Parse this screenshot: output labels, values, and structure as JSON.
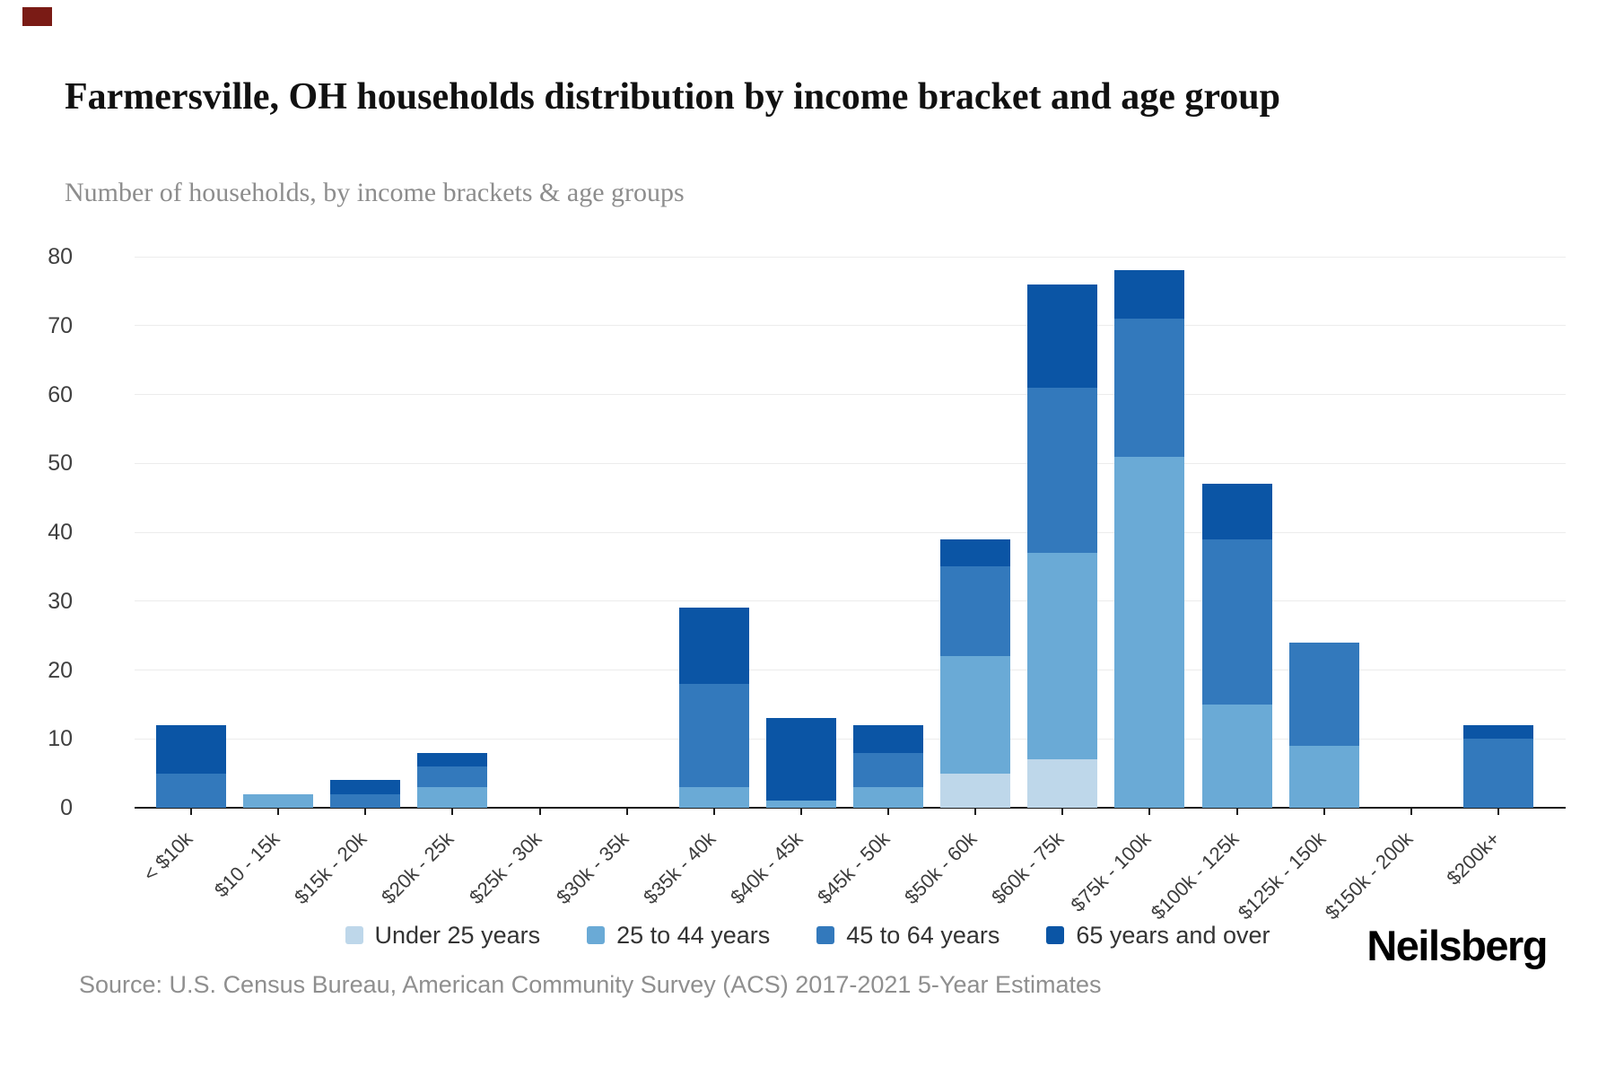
{
  "page": {
    "title": "Farmersville, OH households distribution by income bracket and age group",
    "subtitle": "Number of households, by income brackets & age groups",
    "source": "Source: U.S. Census Bureau, American Community Survey (ACS) 2017-2021 5-Year Estimates",
    "brand": "Neilsberg",
    "accent_mark_color": "#7a1b15"
  },
  "chart_data": {
    "type": "bar",
    "stacked": true,
    "title": "Farmersville, OH households distribution by income bracket and age group",
    "subtitle": "Number of households, by income brackets & age groups",
    "xlabel": "",
    "ylabel": "Number of households",
    "ylim": [
      0,
      80
    ],
    "yticks": [
      0,
      10,
      20,
      30,
      40,
      50,
      60,
      70,
      80
    ],
    "grid": true,
    "legend_position": "bottom",
    "categories": [
      "< $10k",
      "$10 - 15k",
      "$15k - 20k",
      "$20k - 25k",
      "$25k - 30k",
      "$30k - 35k",
      "$35k - 40k",
      "$40k - 45k",
      "$45k - 50k",
      "$50k - 60k",
      "$60k - 75k",
      "$75k - 100k",
      "$100k - 125k",
      "$125k - 150k",
      "$150k - 200k",
      "$200k+"
    ],
    "series": [
      {
        "name": "Under 25 years",
        "color": "#bed7ea",
        "values": [
          0,
          0,
          0,
          0,
          0,
          0,
          0,
          0,
          0,
          5,
          7,
          0,
          0,
          0,
          0,
          0
        ]
      },
      {
        "name": "25 to 44 years",
        "color": "#6aaad6",
        "values": [
          0,
          2,
          0,
          3,
          0,
          0,
          3,
          1,
          3,
          17,
          30,
          51,
          15,
          9,
          0,
          0
        ]
      },
      {
        "name": "45 to 64 years",
        "color": "#3379bc",
        "values": [
          5,
          0,
          2,
          3,
          0,
          0,
          15,
          0,
          5,
          13,
          24,
          20,
          24,
          15,
          0,
          10
        ]
      },
      {
        "name": "65 years and over",
        "color": "#0b55a5",
        "values": [
          7,
          0,
          2,
          2,
          0,
          0,
          11,
          12,
          4,
          4,
          15,
          7,
          8,
          0,
          0,
          2
        ]
      }
    ],
    "totals": [
      12,
      2,
      4,
      8,
      0,
      0,
      29,
      13,
      12,
      39,
      76,
      78,
      47,
      24,
      0,
      12
    ]
  }
}
